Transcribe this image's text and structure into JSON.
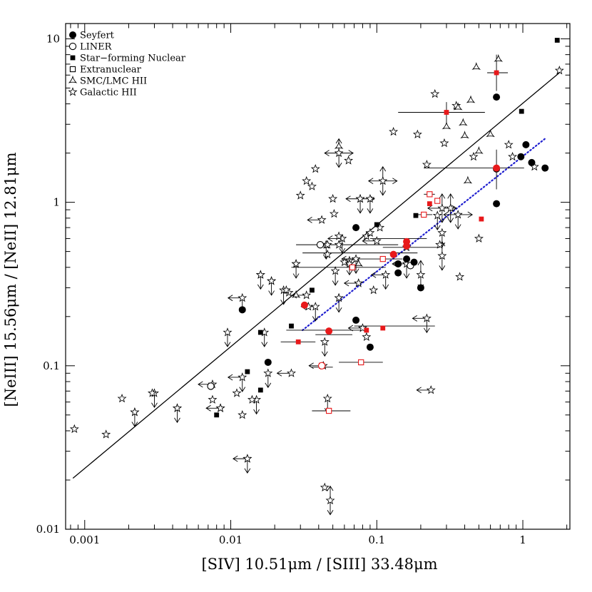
{
  "chart_data": {
    "type": "scatter",
    "title": "",
    "xlabel": "[SIV] 10.51μm / [SIII] 33.48μm",
    "ylabel": "[NeIII] 15.56μm / [NeII] 12.81μm",
    "xscale": "log",
    "yscale": "log",
    "xlim": [
      0.00074,
      2.1
    ],
    "ylim": [
      0.01,
      12.4
    ],
    "xticks": [
      {
        "v": 0.001,
        "label": "0.001"
      },
      {
        "v": 0.01,
        "label": "0.01"
      },
      {
        "v": 0.1,
        "label": "0.1"
      },
      {
        "v": 1,
        "label": "1"
      }
    ],
    "yticks": [
      {
        "v": 0.01,
        "label": "0.01"
      },
      {
        "v": 0.1,
        "label": "0.1"
      },
      {
        "v": 1,
        "label": "1"
      },
      {
        "v": 10,
        "label": "10"
      }
    ],
    "grid": false,
    "legend_position": "top-left",
    "colors": {
      "axes": "#000000",
      "highlight": "#e8191b",
      "fit_dotted": "#1f1fd0"
    },
    "series": [
      {
        "name": "Seyfert",
        "marker": "filled-circle",
        "points": [
          [
            0.012,
            0.22
          ],
          [
            0.018,
            0.105
          ],
          [
            0.072,
            0.7
          ],
          [
            0.14,
            0.37
          ],
          [
            0.14,
            0.42
          ],
          [
            0.16,
            0.45
          ],
          [
            0.18,
            0.43
          ],
          [
            0.2,
            0.3
          ],
          [
            0.072,
            0.19
          ],
          [
            0.09,
            0.13
          ],
          [
            0.66,
            4.4
          ],
          [
            0.97,
            1.9
          ],
          [
            1.05,
            2.25
          ],
          [
            1.15,
            1.75
          ],
          [
            1.42,
            1.62
          ],
          [
            0.66,
            0.98
          ],
          [
            0.66,
            1.6
          ]
        ],
        "highlight": [
          [
            0.032,
            0.235
          ],
          [
            0.047,
            0.163
          ],
          [
            0.13,
            0.48
          ],
          [
            0.16,
            0.575
          ],
          [
            0.16,
            0.54
          ],
          [
            0.66,
            1.62
          ]
        ]
      },
      {
        "name": "LINER",
        "marker": "open-circle",
        "points": [
          [
            0.0073,
            0.075
          ],
          [
            0.041,
            0.55
          ],
          [
            0.17,
            0.41
          ]
        ],
        "highlight": [
          [
            0.042,
            0.1
          ]
        ]
      },
      {
        "name": "Star−forming Nuclear",
        "marker": "filled-square",
        "points": [
          [
            0.008,
            0.05
          ],
          [
            0.013,
            0.092
          ],
          [
            0.016,
            0.16
          ],
          [
            0.016,
            0.071
          ],
          [
            0.026,
            0.175
          ],
          [
            0.036,
            0.29
          ],
          [
            0.1,
            0.73
          ],
          [
            0.185,
            0.83
          ],
          [
            0.98,
            3.6
          ],
          [
            1.72,
            9.8
          ]
        ],
        "highlight": [
          [
            0.029,
            0.14
          ],
          [
            0.085,
            0.165
          ],
          [
            0.11,
            0.17
          ],
          [
            0.23,
            0.98
          ],
          [
            0.52,
            0.79
          ],
          [
            0.3,
            3.55
          ],
          [
            0.66,
            6.2
          ]
        ]
      },
      {
        "name": "Extranuclear",
        "marker": "open-square",
        "points": [],
        "highlight": [
          [
            0.042,
            0.1
          ],
          [
            0.047,
            0.053
          ],
          [
            0.068,
            0.4
          ],
          [
            0.078,
            0.105
          ],
          [
            0.11,
            0.45
          ],
          [
            0.21,
            0.84
          ],
          [
            0.23,
            1.12
          ],
          [
            0.26,
            1.02
          ]
        ]
      },
      {
        "name": "SMC/LMC HII",
        "marker": "open-triangle",
        "points": [
          [
            0.3,
            2.9
          ],
          [
            0.36,
            3.8
          ],
          [
            0.39,
            3.05
          ],
          [
            0.4,
            2.55
          ],
          [
            0.44,
            4.2
          ],
          [
            0.48,
            6.7
          ],
          [
            0.5,
            2.05
          ],
          [
            0.6,
            2.6
          ],
          [
            0.68,
            7.5
          ],
          [
            0.42,
            1.35
          ],
          [
            0.055,
            2.2
          ],
          [
            0.028,
            0.27
          ],
          [
            0.075,
            0.42
          ]
        ]
      },
      {
        "name": "Galactic HII",
        "marker": "open-star",
        "points": [
          [
            0.00085,
            0.041
          ],
          [
            0.0014,
            0.038
          ],
          [
            0.0018,
            0.063
          ],
          [
            0.0022,
            0.052
          ],
          [
            0.0029,
            0.068
          ],
          [
            0.0043,
            0.055
          ],
          [
            0.0075,
            0.062
          ],
          [
            0.0085,
            0.055
          ],
          [
            0.011,
            0.068
          ],
          [
            0.012,
            0.05
          ],
          [
            0.014,
            0.062
          ],
          [
            0.016,
            0.36
          ],
          [
            0.019,
            0.33
          ],
          [
            0.025,
            0.28
          ],
          [
            0.028,
            0.42
          ],
          [
            0.03,
            1.1
          ],
          [
            0.033,
            1.35
          ],
          [
            0.036,
            1.25
          ],
          [
            0.038,
            1.6
          ],
          [
            0.046,
            0.55
          ],
          [
            0.05,
            1.05
          ],
          [
            0.051,
            0.85
          ],
          [
            0.055,
            0.62
          ],
          [
            0.06,
            0.43
          ],
          [
            0.064,
            1.8
          ],
          [
            0.075,
            0.32
          ],
          [
            0.085,
            0.62
          ],
          [
            0.09,
            0.65
          ],
          [
            0.095,
            0.29
          ],
          [
            0.105,
            0.7
          ],
          [
            0.13,
            2.7
          ],
          [
            0.16,
            0.53
          ],
          [
            0.19,
            2.6
          ],
          [
            0.22,
            1.7
          ],
          [
            0.25,
            4.6
          ],
          [
            0.27,
            0.55
          ],
          [
            0.35,
            3.9
          ],
          [
            0.37,
            0.35
          ],
          [
            0.46,
            1.9
          ],
          [
            0.5,
            0.6
          ],
          [
            0.8,
            2.25
          ],
          [
            0.85,
            1.9
          ],
          [
            1.2,
            1.65
          ],
          [
            1.78,
            6.4
          ],
          [
            0.044,
            0.018
          ],
          [
            0.013,
            0.027
          ],
          [
            0.055,
            0.26
          ],
          [
            0.085,
            0.15
          ],
          [
            0.077,
            1.05
          ],
          [
            0.065,
            0.42
          ],
          [
            0.055,
            0.55
          ],
          [
            0.29,
            2.3
          ],
          [
            0.046,
            0.48
          ],
          [
            0.024,
            0.29
          ],
          [
            0.034,
            0.23
          ]
        ]
      }
    ],
    "limit_markers": [
      {
        "x": 0.0022,
        "y": 0.052,
        "dirs": [
          "down"
        ]
      },
      {
        "x": 0.003,
        "y": 0.068,
        "dirs": [
          "down"
        ]
      },
      {
        "x": 0.0043,
        "y": 0.055,
        "dirs": [
          "down"
        ]
      },
      {
        "x": 0.0075,
        "y": 0.077,
        "dirs": [
          "left"
        ]
      },
      {
        "x": 0.0085,
        "y": 0.055,
        "dirs": [
          "left"
        ]
      },
      {
        "x": 0.0095,
        "y": 0.16,
        "dirs": [
          "down"
        ]
      },
      {
        "x": 0.012,
        "y": 0.26,
        "dirs": [
          "left",
          "down"
        ]
      },
      {
        "x": 0.012,
        "y": 0.085,
        "dirs": [
          "left",
          "down"
        ]
      },
      {
        "x": 0.013,
        "y": 0.027,
        "dirs": [
          "left",
          "down"
        ]
      },
      {
        "x": 0.015,
        "y": 0.062,
        "dirs": [
          "down"
        ]
      },
      {
        "x": 0.016,
        "y": 0.36,
        "dirs": [
          "down"
        ]
      },
      {
        "x": 0.017,
        "y": 0.16,
        "dirs": [
          "down"
        ]
      },
      {
        "x": 0.018,
        "y": 0.09,
        "dirs": [
          "down"
        ]
      },
      {
        "x": 0.019,
        "y": 0.33,
        "dirs": [
          "down"
        ]
      },
      {
        "x": 0.023,
        "y": 0.29,
        "dirs": [
          "down"
        ]
      },
      {
        "x": 0.026,
        "y": 0.09,
        "dirs": [
          "left"
        ]
      },
      {
        "x": 0.028,
        "y": 0.42,
        "dirs": [
          "down"
        ]
      },
      {
        "x": 0.033,
        "y": 0.27,
        "dirs": [
          "left"
        ]
      },
      {
        "x": 0.038,
        "y": 0.23,
        "dirs": [
          "left",
          "down"
        ]
      },
      {
        "x": 0.042,
        "y": 0.78,
        "dirs": [
          "left"
        ]
      },
      {
        "x": 0.043,
        "y": 0.1,
        "dirs": [
          "left"
        ]
      },
      {
        "x": 0.044,
        "y": 0.14,
        "dirs": [
          "down"
        ]
      },
      {
        "x": 0.045,
        "y": 0.55,
        "dirs": [
          "down"
        ]
      },
      {
        "x": 0.046,
        "y": 0.063,
        "dirs": [
          "down"
        ]
      },
      {
        "x": 0.048,
        "y": 0.015,
        "dirs": [
          "up",
          "down"
        ]
      },
      {
        "x": 0.052,
        "y": 0.38,
        "dirs": [
          "down"
        ]
      },
      {
        "x": 0.055,
        "y": 2.0,
        "dirs": [
          "left",
          "right",
          "up",
          "down"
        ]
      },
      {
        "x": 0.055,
        "y": 0.26,
        "dirs": [
          "down"
        ]
      },
      {
        "x": 0.058,
        "y": 0.6,
        "dirs": [
          "left",
          "down"
        ]
      },
      {
        "x": 0.065,
        "y": 0.44,
        "dirs": [
          "down"
        ]
      },
      {
        "x": 0.072,
        "y": 0.45,
        "dirs": [
          "left",
          "down"
        ]
      },
      {
        "x": 0.075,
        "y": 0.32,
        "dirs": [
          "left"
        ]
      },
      {
        "x": 0.077,
        "y": 1.05,
        "dirs": [
          "left",
          "right",
          "down"
        ]
      },
      {
        "x": 0.08,
        "y": 0.17,
        "dirs": [
          "left"
        ]
      },
      {
        "x": 0.09,
        "y": 1.05,
        "dirs": [
          "down"
        ]
      },
      {
        "x": 0.1,
        "y": 0.58,
        "dirs": [
          "left"
        ]
      },
      {
        "x": 0.11,
        "y": 1.35,
        "dirs": [
          "left",
          "right",
          "up",
          "down"
        ]
      },
      {
        "x": 0.115,
        "y": 0.36,
        "dirs": [
          "left",
          "down"
        ]
      },
      {
        "x": 0.16,
        "y": 0.42,
        "dirs": [
          "left",
          "down"
        ]
      },
      {
        "x": 0.2,
        "y": 0.36,
        "dirs": [
          "up",
          "down"
        ]
      },
      {
        "x": 0.22,
        "y": 0.195,
        "dirs": [
          "left",
          "down"
        ]
      },
      {
        "x": 0.235,
        "y": 0.071,
        "dirs": [
          "left"
        ]
      },
      {
        "x": 0.26,
        "y": 0.83,
        "dirs": [
          "down"
        ]
      },
      {
        "x": 0.28,
        "y": 0.92,
        "dirs": [
          "left",
          "right",
          "up",
          "down"
        ]
      },
      {
        "x": 0.28,
        "y": 0.65,
        "dirs": [
          "down"
        ]
      },
      {
        "x": 0.28,
        "y": 0.47,
        "dirs": [
          "up",
          "down"
        ]
      },
      {
        "x": 0.32,
        "y": 0.92,
        "dirs": [
          "up",
          "down"
        ]
      },
      {
        "x": 0.36,
        "y": 0.84,
        "dirs": [
          "left",
          "right",
          "down"
        ]
      }
    ],
    "xerrorbars": [
      {
        "y": 0.55,
        "x1": 0.028,
        "x2": 0.14
      },
      {
        "y": 0.49,
        "x1": 0.031,
        "x2": 0.19
      },
      {
        "y": 0.4,
        "x1": 0.026,
        "x2": 0.115
      },
      {
        "y": 0.45,
        "x1": 0.07,
        "x2": 0.15
      },
      {
        "y": 0.165,
        "x1": 0.024,
        "x2": 0.079
      },
      {
        "y": 0.155,
        "x1": 0.038,
        "x2": 0.068
      },
      {
        "y": 0.14,
        "x1": 0.022,
        "x2": 0.038
      },
      {
        "y": 0.175,
        "x1": 0.07,
        "x2": 0.25
      },
      {
        "y": 0.105,
        "x1": 0.055,
        "x2": 0.11
      },
      {
        "y": 0.053,
        "x1": 0.036,
        "x2": 0.066
      },
      {
        "y": 0.098,
        "x1": 0.036,
        "x2": 0.05
      },
      {
        "y": 0.53,
        "x1": 0.11,
        "x2": 0.27
      },
      {
        "y": 0.6,
        "x1": 0.09,
        "x2": 0.22
      },
      {
        "y": 1.62,
        "x1": 0.21,
        "x2": 1.02
      },
      {
        "y": 3.55,
        "x1": 0.14,
        "x2": 0.55
      },
      {
        "y": 6.2,
        "x1": 0.57,
        "x2": 0.79
      },
      {
        "y": 0.84,
        "x1": 0.19,
        "x2": 0.24
      },
      {
        "y": 1.12,
        "x1": 0.21,
        "x2": 0.25
      }
    ],
    "yerrorbars": [
      {
        "x": 0.66,
        "y1": 1.2,
        "y2": 2.1
      },
      {
        "x": 0.66,
        "y1": 4.8,
        "y2": 8.0
      },
      {
        "x": 0.3,
        "y1": 3.0,
        "y2": 4.1
      }
    ],
    "fit_lines": [
      {
        "style": "solid",
        "color": "#000000",
        "points": [
          [
            0.00083,
            0.0205
          ],
          [
            1.78,
            6.2
          ]
        ]
      },
      {
        "style": "dotted",
        "color": "#1f1fd0",
        "points": [
          [
            0.031,
            0.165
          ],
          [
            1.42,
            2.45
          ]
        ]
      }
    ]
  }
}
